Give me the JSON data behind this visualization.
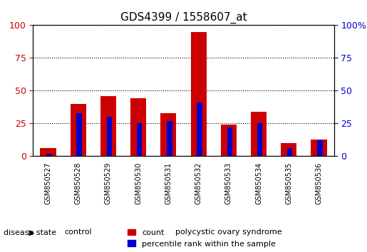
{
  "title": "GDS4399 / 1558607_at",
  "samples": [
    "GSM850527",
    "GSM850528",
    "GSM850529",
    "GSM850530",
    "GSM850531",
    "GSM850532",
    "GSM850533",
    "GSM850534",
    "GSM850535",
    "GSM850536"
  ],
  "count_values": [
    6,
    40,
    46,
    44,
    33,
    95,
    24,
    34,
    10,
    13
  ],
  "percentile_values": [
    2,
    33,
    30,
    25,
    27,
    41,
    22,
    25,
    6,
    12
  ],
  "bar_width": 0.35,
  "count_color": "#cc0000",
  "percentile_color": "#0000cc",
  "ylim_left": [
    0,
    100
  ],
  "ylim_right": [
    0,
    100
  ],
  "yticks": [
    0,
    25,
    50,
    75,
    100
  ],
  "ytick_labels_left": [
    "0",
    "25",
    "50",
    "75",
    "100"
  ],
  "ytick_labels_right": [
    "0",
    "25",
    "50",
    "75",
    "100%"
  ],
  "ylabel_left_color": "#cc0000",
  "ylabel_right_color": "#0000cc",
  "grid_color": "black",
  "grid_style": "dotted",
  "groups": [
    {
      "label": "control",
      "samples": [
        0,
        1,
        2
      ],
      "color": "#90ee90"
    },
    {
      "label": "polycystic ovary syndrome",
      "samples": [
        3,
        4,
        5,
        6,
        7,
        8,
        9
      ],
      "color": "#66cc66"
    }
  ],
  "disease_state_label": "disease state",
  "legend_count_label": "count",
  "legend_percentile_label": "percentile rank within the sample",
  "bg_color": "#ffffff",
  "plot_bg_color": "#ffffff",
  "tick_label_color": "#cc0000",
  "right_tick_label_color": "#0000cc",
  "xticklabel_bg": "#d3d3d3"
}
